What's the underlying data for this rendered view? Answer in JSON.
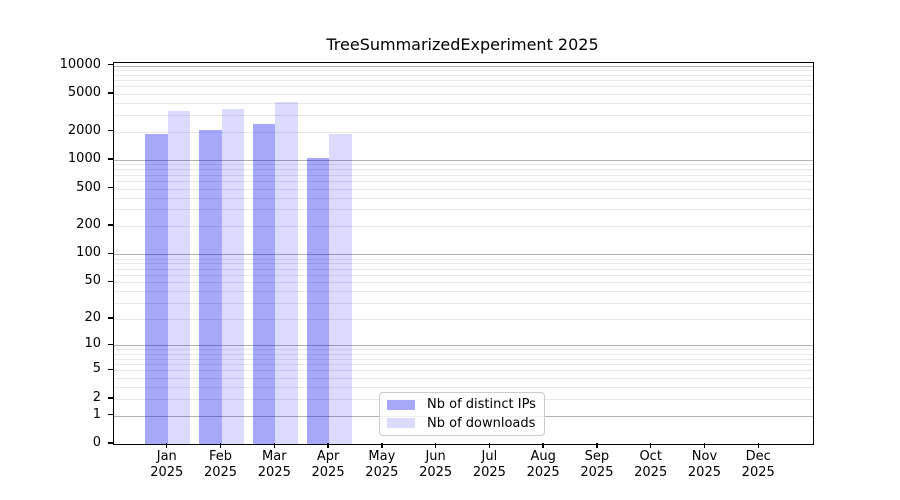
{
  "title": "TreeSummarizedExperiment 2025",
  "colors": {
    "bar_distinct_ips": "rgba(0,0,240,0.34)",
    "bar_downloads": "rgba(0,0,240,0.14)",
    "grid_major": "#b2b2b2",
    "grid_minor": "#e8e8e8",
    "axis": "#000000",
    "legend_border": "#cccccc"
  },
  "chart_data": {
    "type": "bar",
    "title": "TreeSummarizedExperiment 2025",
    "xlabel": "",
    "ylabel": "",
    "year": "2025",
    "categories": [
      "Jan",
      "Feb",
      "Mar",
      "Apr",
      "May",
      "Jun",
      "Jul",
      "Aug",
      "Sep",
      "Oct",
      "Nov",
      "Dec"
    ],
    "series": [
      {
        "name": "Nb of distinct IPs",
        "values": [
          1870,
          2100,
          2400,
          1060,
          null,
          null,
          null,
          null,
          null,
          null,
          null,
          null
        ]
      },
      {
        "name": "Nb of downloads",
        "values": [
          3330,
          3440,
          4150,
          1900,
          null,
          null,
          null,
          null,
          null,
          null,
          null,
          null
        ]
      }
    ],
    "y_scale": "log10(1+x)",
    "ylim": [
      0,
      10000
    ],
    "yticks": [
      0,
      1,
      2,
      5,
      10,
      20,
      50,
      100,
      200,
      500,
      1000,
      2000,
      5000,
      10000
    ],
    "grid": "horizontal major and minor",
    "legend_position": "lower center inside plot"
  }
}
